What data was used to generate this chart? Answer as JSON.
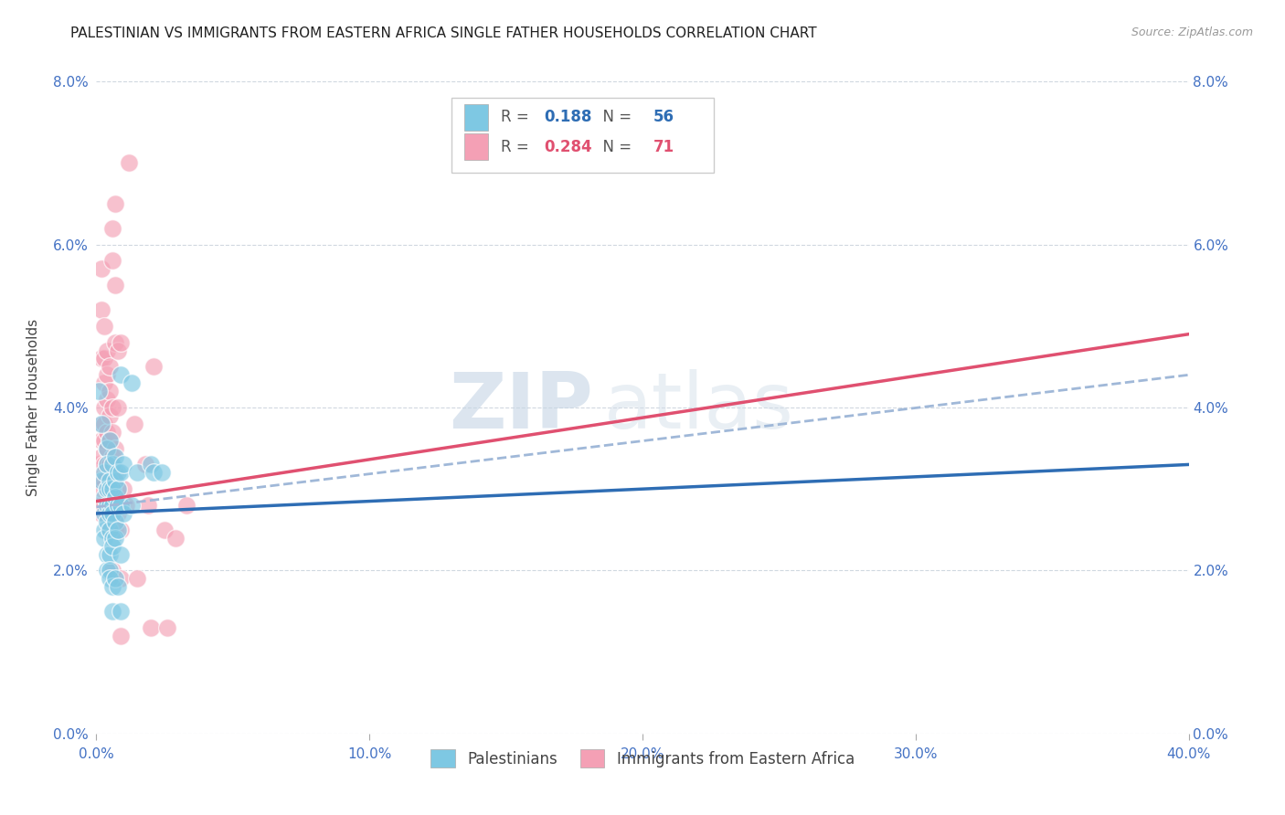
{
  "title": "PALESTINIAN VS IMMIGRANTS FROM EASTERN AFRICA SINGLE FATHER HOUSEHOLDS CORRELATION CHART",
  "source": "Source: ZipAtlas.com",
  "ylabel": "Single Father Households",
  "xlabel_ticks": [
    "0.0%",
    "10.0%",
    "20.0%",
    "30.0%",
    "40.0%"
  ],
  "xlabel_vals": [
    0.0,
    0.1,
    0.2,
    0.3,
    0.4
  ],
  "ylabel_ticks": [
    "0.0%",
    "2.0%",
    "4.0%",
    "6.0%",
    "8.0%"
  ],
  "ylabel_vals": [
    0.0,
    0.02,
    0.04,
    0.06,
    0.08
  ],
  "xlim": [
    0.0,
    0.4
  ],
  "ylim": [
    0.0,
    0.08
  ],
  "legend1_label": "Palestinians",
  "legend2_label": "Immigrants from Eastern Africa",
  "r1": "0.188",
  "n1": "56",
  "r2": "0.284",
  "n2": "71",
  "blue_color": "#7ec8e3",
  "pink_color": "#f4a0b5",
  "line_blue": "#2e6db4",
  "line_pink": "#e05070",
  "dashed_line_color": "#a0b8d8",
  "watermark_zip": "ZIP",
  "watermark_atlas": "atlas",
  "title_fontsize": 11,
  "source_fontsize": 9,
  "tick_color": "#4472c4",
  "blue_scatter": [
    [
      0.001,
      0.042
    ],
    [
      0.002,
      0.038
    ],
    [
      0.002,
      0.031
    ],
    [
      0.003,
      0.032
    ],
    [
      0.003,
      0.029
    ],
    [
      0.003,
      0.027
    ],
    [
      0.003,
      0.025
    ],
    [
      0.003,
      0.024
    ],
    [
      0.004,
      0.035
    ],
    [
      0.004,
      0.033
    ],
    [
      0.004,
      0.03
    ],
    [
      0.004,
      0.028
    ],
    [
      0.004,
      0.026
    ],
    [
      0.004,
      0.022
    ],
    [
      0.004,
      0.02
    ],
    [
      0.005,
      0.036
    ],
    [
      0.005,
      0.031
    ],
    [
      0.005,
      0.03
    ],
    [
      0.005,
      0.028
    ],
    [
      0.005,
      0.027
    ],
    [
      0.005,
      0.025
    ],
    [
      0.005,
      0.022
    ],
    [
      0.005,
      0.02
    ],
    [
      0.005,
      0.019
    ],
    [
      0.006,
      0.033
    ],
    [
      0.006,
      0.03
    ],
    [
      0.006,
      0.028
    ],
    [
      0.006,
      0.027
    ],
    [
      0.006,
      0.024
    ],
    [
      0.006,
      0.023
    ],
    [
      0.006,
      0.018
    ],
    [
      0.006,
      0.015
    ],
    [
      0.007,
      0.034
    ],
    [
      0.007,
      0.031
    ],
    [
      0.007,
      0.029
    ],
    [
      0.007,
      0.026
    ],
    [
      0.007,
      0.024
    ],
    [
      0.007,
      0.019
    ],
    [
      0.008,
      0.032
    ],
    [
      0.008,
      0.03
    ],
    [
      0.008,
      0.028
    ],
    [
      0.008,
      0.025
    ],
    [
      0.008,
      0.018
    ],
    [
      0.009,
      0.044
    ],
    [
      0.009,
      0.032
    ],
    [
      0.009,
      0.028
    ],
    [
      0.009,
      0.022
    ],
    [
      0.009,
      0.015
    ],
    [
      0.01,
      0.033
    ],
    [
      0.01,
      0.027
    ],
    [
      0.013,
      0.043
    ],
    [
      0.013,
      0.028
    ],
    [
      0.015,
      0.032
    ],
    [
      0.02,
      0.033
    ],
    [
      0.021,
      0.032
    ],
    [
      0.024,
      0.032
    ]
  ],
  "pink_scatter": [
    [
      0.001,
      0.033
    ],
    [
      0.001,
      0.031
    ],
    [
      0.001,
      0.028
    ],
    [
      0.002,
      0.057
    ],
    [
      0.002,
      0.052
    ],
    [
      0.002,
      0.046
    ],
    [
      0.002,
      0.038
    ],
    [
      0.002,
      0.036
    ],
    [
      0.002,
      0.034
    ],
    [
      0.002,
      0.032
    ],
    [
      0.002,
      0.03
    ],
    [
      0.002,
      0.027
    ],
    [
      0.003,
      0.05
    ],
    [
      0.003,
      0.046
    ],
    [
      0.003,
      0.043
    ],
    [
      0.003,
      0.04
    ],
    [
      0.003,
      0.038
    ],
    [
      0.003,
      0.036
    ],
    [
      0.003,
      0.033
    ],
    [
      0.003,
      0.031
    ],
    [
      0.003,
      0.028
    ],
    [
      0.004,
      0.047
    ],
    [
      0.004,
      0.044
    ],
    [
      0.004,
      0.041
    ],
    [
      0.004,
      0.037
    ],
    [
      0.004,
      0.035
    ],
    [
      0.004,
      0.033
    ],
    [
      0.004,
      0.03
    ],
    [
      0.004,
      0.027
    ],
    [
      0.005,
      0.045
    ],
    [
      0.005,
      0.042
    ],
    [
      0.005,
      0.039
    ],
    [
      0.005,
      0.036
    ],
    [
      0.005,
      0.033
    ],
    [
      0.005,
      0.029
    ],
    [
      0.005,
      0.025
    ],
    [
      0.006,
      0.062
    ],
    [
      0.006,
      0.058
    ],
    [
      0.006,
      0.04
    ],
    [
      0.006,
      0.037
    ],
    [
      0.006,
      0.034
    ],
    [
      0.006,
      0.031
    ],
    [
      0.006,
      0.027
    ],
    [
      0.006,
      0.02
    ],
    [
      0.007,
      0.065
    ],
    [
      0.007,
      0.055
    ],
    [
      0.007,
      0.048
    ],
    [
      0.007,
      0.035
    ],
    [
      0.007,
      0.032
    ],
    [
      0.007,
      0.025
    ],
    [
      0.008,
      0.047
    ],
    [
      0.008,
      0.04
    ],
    [
      0.008,
      0.03
    ],
    [
      0.008,
      0.027
    ],
    [
      0.009,
      0.048
    ],
    [
      0.009,
      0.025
    ],
    [
      0.009,
      0.019
    ],
    [
      0.009,
      0.012
    ],
    [
      0.01,
      0.03
    ],
    [
      0.011,
      0.028
    ],
    [
      0.012,
      0.07
    ],
    [
      0.014,
      0.038
    ],
    [
      0.015,
      0.019
    ],
    [
      0.018,
      0.033
    ],
    [
      0.019,
      0.028
    ],
    [
      0.02,
      0.013
    ],
    [
      0.021,
      0.045
    ],
    [
      0.025,
      0.025
    ],
    [
      0.026,
      0.013
    ],
    [
      0.029,
      0.024
    ],
    [
      0.033,
      0.028
    ]
  ],
  "blue_line_y0": 0.027,
  "blue_line_y1": 0.033,
  "pink_line_y0": 0.0285,
  "pink_line_y1": 0.049,
  "dash_line_y0": 0.0278,
  "dash_line_y1": 0.044
}
